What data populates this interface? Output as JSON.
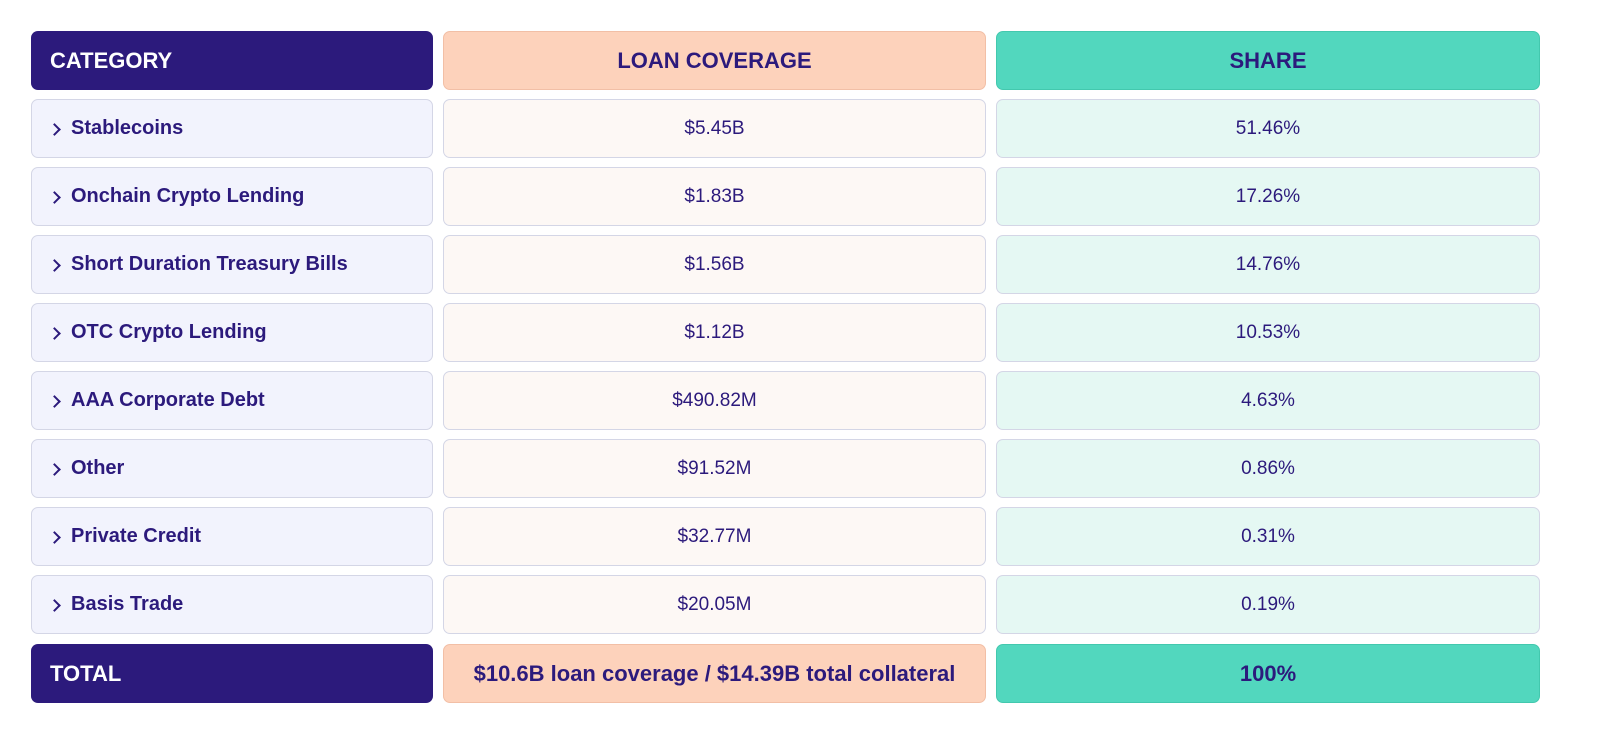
{
  "table": {
    "headers": {
      "category": "CATEGORY",
      "loan_coverage": "LOAN COVERAGE",
      "share": "SHARE"
    },
    "rows": [
      {
        "category": "Stablecoins",
        "loan_coverage": "$5.45B",
        "share": "51.46%"
      },
      {
        "category": "Onchain Crypto Lending",
        "loan_coverage": "$1.83B",
        "share": "17.26%"
      },
      {
        "category": "Short Duration Treasury Bills",
        "loan_coverage": "$1.56B",
        "share": "14.76%"
      },
      {
        "category": "OTC Crypto Lending",
        "loan_coverage": "$1.12B",
        "share": "10.53%"
      },
      {
        "category": "AAA Corporate Debt",
        "loan_coverage": "$490.82M",
        "share": "4.63%"
      },
      {
        "category": "Other",
        "loan_coverage": "$91.52M",
        "share": "0.86%"
      },
      {
        "category": "Private Credit",
        "loan_coverage": "$32.77M",
        "share": "0.31%"
      },
      {
        "category": "Basis Trade",
        "loan_coverage": "$20.05M",
        "share": "0.19%"
      }
    ],
    "total": {
      "label": "TOTAL",
      "loan_coverage": "$10.6B loan coverage / $14.39B total collateral",
      "share": "100%"
    }
  },
  "colors": {
    "category_header": "#2c1a7c",
    "loan_header": "#fdd2bb",
    "share_header": "#52d7be",
    "text": "#2c1a7c"
  },
  "icons": {
    "row_expander": "chevron-right-icon"
  }
}
